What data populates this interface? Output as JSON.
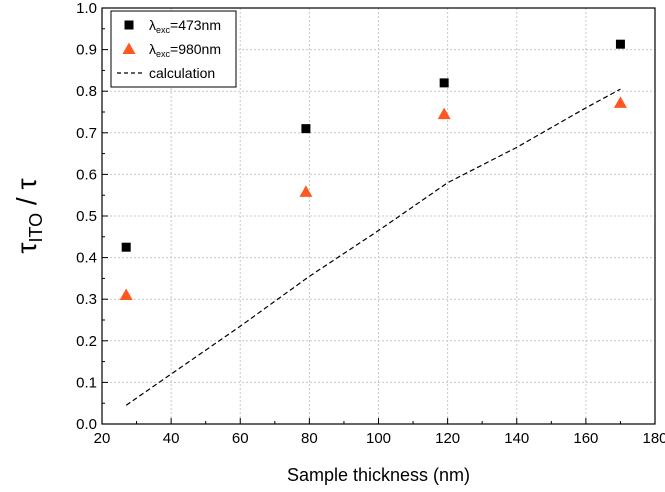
{
  "chart_data": {
    "type": "scatter",
    "xlabel": "Sample thickness (nm)",
    "ylabel": {
      "main": "τ",
      "sub": "ITO",
      "suffix": " / τ"
    },
    "xlim": [
      20,
      180
    ],
    "ylim": [
      0.0,
      1.0
    ],
    "xticks": [
      "20",
      "40",
      "60",
      "80",
      "100",
      "120",
      "140",
      "160",
      "180"
    ],
    "yticks": [
      "0.0",
      "0.1",
      "0.2",
      "0.3",
      "0.4",
      "0.5",
      "0.6",
      "0.7",
      "0.8",
      "0.9",
      "1.0"
    ],
    "grid": true,
    "legend_position": "top-left",
    "series": [
      {
        "name": {
          "pre": "λ",
          "sub": "exc",
          "post": "=473nm"
        },
        "marker": "square",
        "color": "#000000",
        "x": [
          27,
          79,
          119,
          170
        ],
        "y": [
          0.425,
          0.71,
          0.82,
          0.913
        ]
      },
      {
        "name": {
          "pre": "λ",
          "sub": "exc",
          "post": "=980nm"
        },
        "marker": "triangle",
        "color": "#ff5722",
        "x": [
          27,
          79,
          119,
          170
        ],
        "y": [
          0.31,
          0.558,
          0.745,
          0.772
        ]
      },
      {
        "name": {
          "pre": "",
          "sub": "",
          "post": "calculation"
        },
        "marker": "dashed-line",
        "color": "#000000",
        "x": [
          27,
          40,
          60,
          80,
          100,
          120,
          140,
          160,
          170
        ],
        "y": [
          0.045,
          0.12,
          0.235,
          0.355,
          0.465,
          0.58,
          0.665,
          0.76,
          0.805
        ]
      }
    ]
  }
}
